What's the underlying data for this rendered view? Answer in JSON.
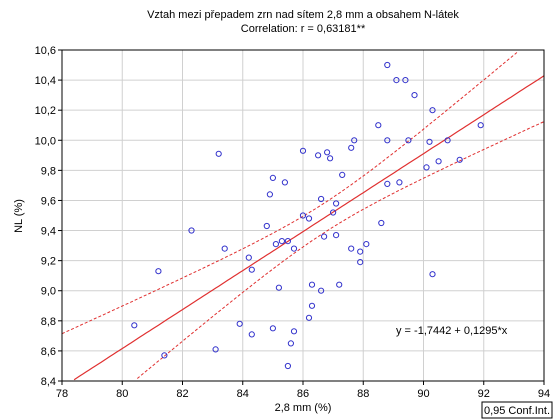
{
  "chart_data": {
    "type": "scatter",
    "title": "Vztah mezi přepadem zrn nad sítem 2,8 mm a obsahem N-látek",
    "subtitle": "Correlation: r = 0,63181**",
    "xlabel": "2,8 mm (%)",
    "ylabel": "NL (%)",
    "xlim": [
      78,
      94
    ],
    "ylim": [
      8.4,
      10.6
    ],
    "x_ticks": [
      "78",
      "80",
      "82",
      "84",
      "86",
      "88",
      "90",
      "92",
      "94"
    ],
    "y_ticks": [
      "8,4",
      "8,6",
      "8,8",
      "9,0",
      "9,2",
      "9,4",
      "9,6",
      "9,8",
      "10,0",
      "10,2",
      "10,4",
      "10,6"
    ],
    "grid": true,
    "regression_equation": "y = -1,7442 + 0,1295*x",
    "regression": {
      "intercept": -1.7442,
      "slope": 0.1295
    },
    "confidence_band_label": "0,95 Conf.Int.",
    "colors": {
      "points": "#3333cc",
      "regression": "#e03030",
      "grid": "#d0d0d0"
    },
    "points": [
      [
        80.4,
        8.77
      ],
      [
        81.4,
        8.57
      ],
      [
        81.2,
        9.13
      ],
      [
        82.3,
        9.4
      ],
      [
        83.1,
        8.61
      ],
      [
        83.2,
        9.91
      ],
      [
        83.4,
        9.28
      ],
      [
        83.9,
        8.78
      ],
      [
        84.2,
        9.22
      ],
      [
        84.3,
        9.14
      ],
      [
        84.3,
        8.71
      ],
      [
        84.8,
        9.43
      ],
      [
        84.9,
        9.64
      ],
      [
        85.0,
        9.75
      ],
      [
        85.0,
        8.75
      ],
      [
        85.1,
        9.31
      ],
      [
        85.2,
        9.02
      ],
      [
        85.3,
        9.33
      ],
      [
        85.4,
        9.72
      ],
      [
        85.5,
        9.33
      ],
      [
        85.7,
        9.28
      ],
      [
        85.5,
        8.5
      ],
      [
        85.6,
        8.65
      ],
      [
        85.7,
        8.73
      ],
      [
        86.0,
        9.93
      ],
      [
        86.0,
        9.5
      ],
      [
        86.2,
        9.48
      ],
      [
        86.2,
        8.82
      ],
      [
        86.3,
        9.04
      ],
      [
        86.3,
        8.9
      ],
      [
        86.5,
        9.9
      ],
      [
        86.6,
        9.61
      ],
      [
        86.6,
        9.0
      ],
      [
        86.7,
        9.36
      ],
      [
        86.8,
        9.92
      ],
      [
        86.9,
        9.88
      ],
      [
        87.0,
        9.52
      ],
      [
        87.1,
        9.37
      ],
      [
        87.1,
        9.58
      ],
      [
        87.2,
        9.04
      ],
      [
        87.3,
        9.77
      ],
      [
        87.6,
        9.95
      ],
      [
        87.7,
        10.0
      ],
      [
        87.6,
        9.28
      ],
      [
        87.9,
        9.26
      ],
      [
        87.9,
        9.19
      ],
      [
        88.1,
        9.31
      ],
      [
        88.5,
        10.1
      ],
      [
        88.6,
        9.45
      ],
      [
        88.8,
        9.71
      ],
      [
        88.8,
        10.0
      ],
      [
        88.8,
        10.5
      ],
      [
        89.1,
        10.4
      ],
      [
        89.2,
        9.72
      ],
      [
        89.4,
        10.4
      ],
      [
        89.5,
        10.0
      ],
      [
        89.7,
        10.3
      ],
      [
        90.1,
        9.82
      ],
      [
        90.2,
        9.99
      ],
      [
        90.3,
        10.2
      ],
      [
        90.3,
        9.11
      ],
      [
        90.5,
        9.86
      ],
      [
        90.8,
        10.0
      ],
      [
        91.2,
        9.87
      ],
      [
        91.9,
        10.1
      ]
    ]
  }
}
